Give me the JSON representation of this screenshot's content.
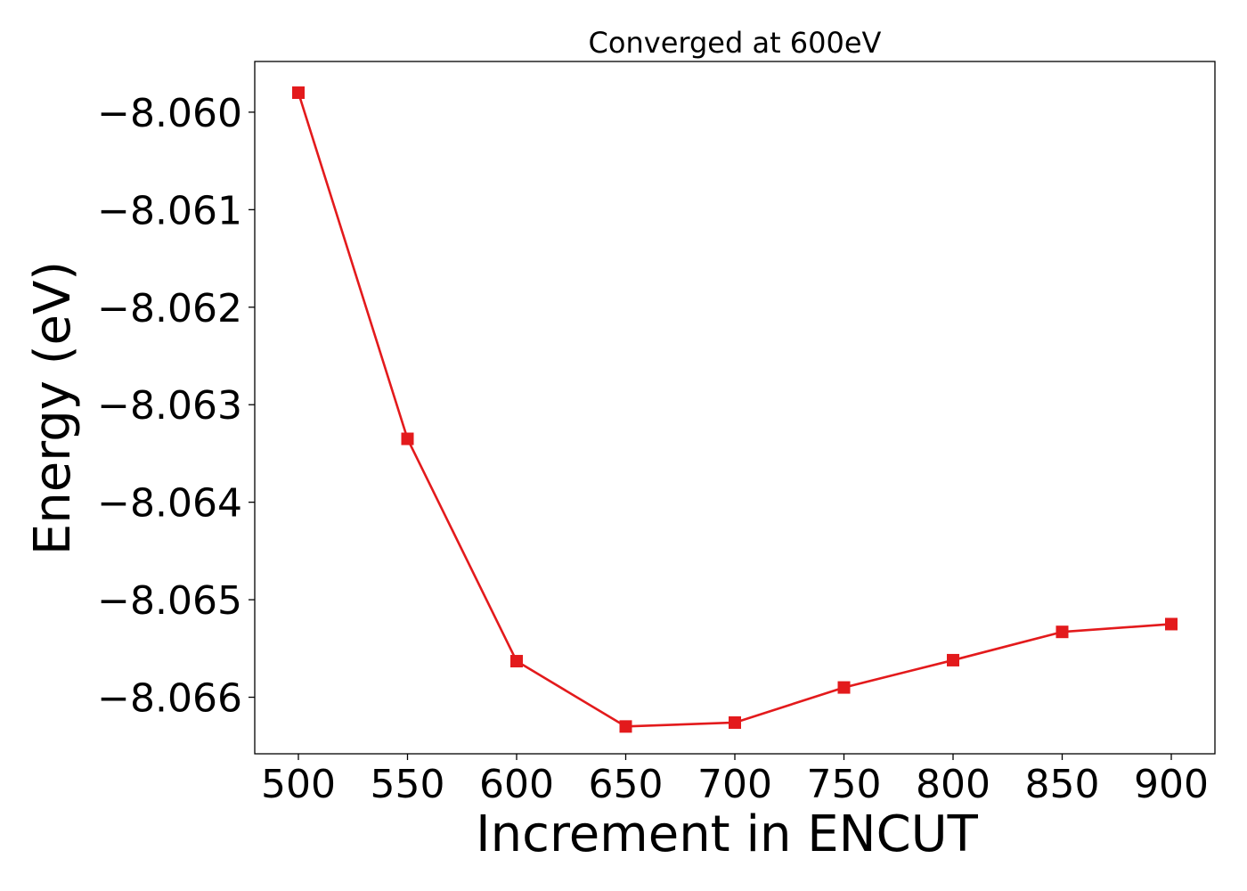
{
  "chart_data": {
    "type": "line",
    "title": "Converged at 600eV",
    "xlabel": "Increment in ENCUT",
    "ylabel": "Energy (eV)",
    "x": [
      500,
      550,
      600,
      650,
      700,
      750,
      800,
      850,
      900
    ],
    "series": [
      {
        "values": [
          -8.0598,
          -8.06335,
          -8.06563,
          -8.0663,
          -8.06626,
          -8.0659,
          -8.06562,
          -8.06533,
          -8.06525
        ],
        "color": "#e31a1c",
        "marker": "square"
      }
    ],
    "xticks": [
      500,
      550,
      600,
      650,
      700,
      750,
      800,
      850,
      900
    ],
    "xtick_labels": [
      "500",
      "550",
      "600",
      "650",
      "700",
      "750",
      "800",
      "850",
      "900"
    ],
    "yticks": [
      -8.06,
      -8.061,
      -8.062,
      -8.063,
      -8.064,
      -8.065,
      -8.066
    ],
    "ytick_labels": [
      "−8.060",
      "−8.061",
      "−8.062",
      "−8.063",
      "−8.064",
      "−8.065",
      "−8.066"
    ],
    "xlim": [
      480,
      920
    ],
    "ylim": [
      -8.06658,
      -8.05948
    ],
    "grid": false,
    "legend": false
  }
}
